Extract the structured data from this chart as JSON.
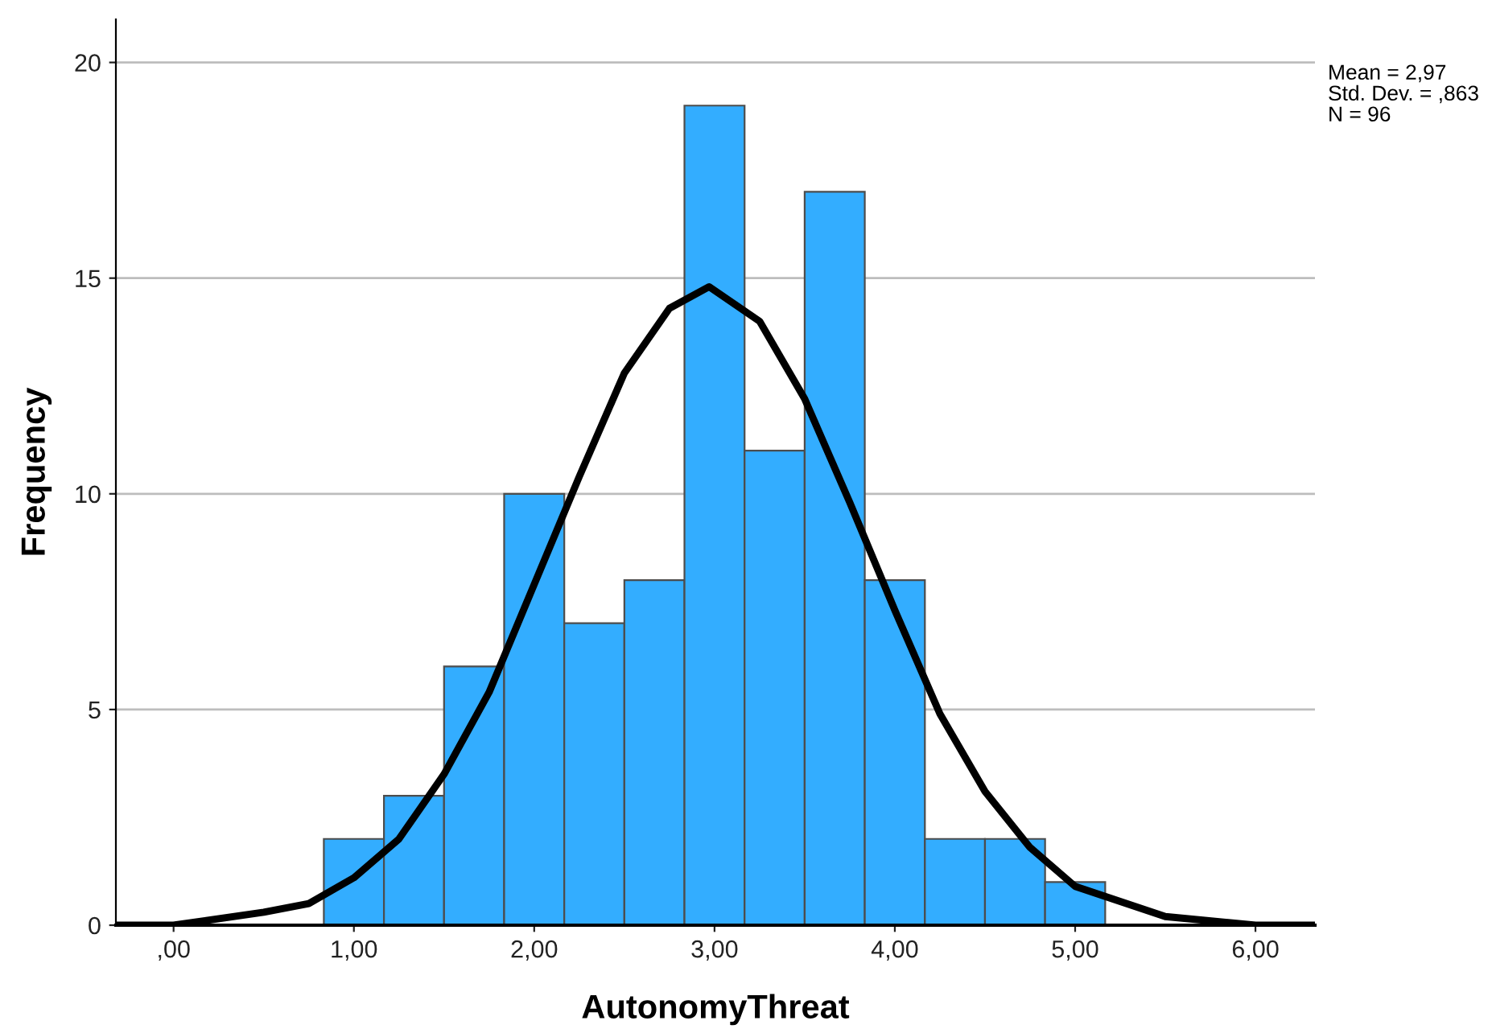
{
  "chart_data": {
    "type": "histogram",
    "xlabel": "AutonomyThreat",
    "ylabel": "Frequency",
    "bins": [
      0.8333,
      1.1667,
      1.5,
      1.8333,
      2.1667,
      2.5,
      2.8333,
      3.1667,
      3.5,
      3.8333,
      4.1667,
      4.5,
      4.8333,
      5.1667
    ],
    "values": [
      2,
      3,
      6,
      10,
      7,
      8,
      19,
      11,
      17,
      8,
      2,
      2,
      1
    ],
    "color": "#33adff",
    "series": [
      {
        "type": "line",
        "color": "#000000",
        "x": [
          -0.3,
          0,
          0.5,
          0.75,
          1.0,
          1.25,
          1.5,
          1.75,
          2.0,
          2.25,
          2.5,
          2.75,
          2.97,
          3.25,
          3.5,
          3.75,
          4.0,
          4.25,
          4.5,
          4.75,
          5.0,
          5.5,
          6.0,
          6.33
        ],
        "values": [
          0.0,
          0.0,
          0.3,
          0.5,
          1.1,
          2.0,
          3.5,
          5.4,
          7.9,
          10.4,
          12.8,
          14.3,
          14.8,
          14.0,
          12.2,
          9.8,
          7.3,
          4.9,
          3.1,
          1.8,
          0.9,
          0.2,
          0.0,
          0.0
        ]
      }
    ],
    "xlim": [
      -0.32,
      6.33
    ],
    "xticks": [
      {
        "value": 0,
        "label": ",00"
      },
      {
        "value": 1,
        "label": "1,00"
      },
      {
        "value": 2,
        "label": "2,00"
      },
      {
        "value": 3,
        "label": "3,00"
      },
      {
        "value": 4,
        "label": "4,00"
      },
      {
        "value": 5,
        "label": "5,00"
      },
      {
        "value": 6,
        "label": "6,00"
      }
    ],
    "ylim": [
      0,
      21
    ],
    "yticks": [
      0,
      5,
      10,
      15,
      20
    ],
    "grid": "y",
    "annotations": [
      "Mean = 2,97",
      "Std. Dev. = ,863",
      "N = 96"
    ]
  }
}
